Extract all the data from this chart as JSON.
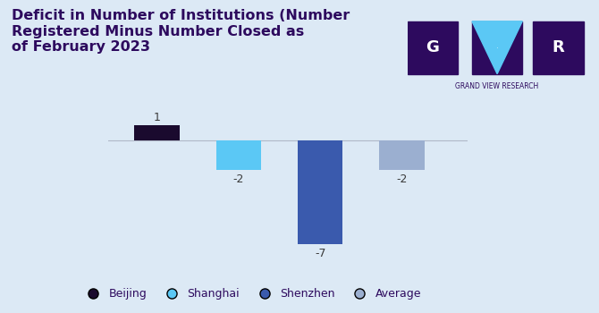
{
  "title": "Deficit in Number of Institutions (Number\nRegistered Minus Number Closed as\nof February 2023",
  "categories": [
    "Beijing",
    "Shanghai",
    "Shenzhen",
    "Average"
  ],
  "values": [
    1,
    -2,
    -7,
    -2
  ],
  "bar_colors": [
    "#1a0a2e",
    "#5bc8f5",
    "#3a5aad",
    "#9bafd0"
  ],
  "background_color": "#dce9f5",
  "title_color": "#2d0a5e",
  "label_color": "#3a3a3a",
  "legend_labels": [
    "Beijing",
    "Shanghai",
    "Shenzhen",
    "Average"
  ],
  "legend_colors": [
    "#1a0a2e",
    "#5bc8f5",
    "#3a5aad",
    "#9bafd0"
  ],
  "ylim": [
    -8.5,
    2.5
  ],
  "bar_width": 0.55,
  "title_fontsize": 11.5,
  "label_fontsize": 9,
  "legend_fontsize": 9,
  "logo_bg": "#2d0a5e",
  "logo_cyan": "#5bc8f5",
  "logo_text": "GRAND VIEW RESEARCH",
  "logo_text_color": "#2d0a5e"
}
